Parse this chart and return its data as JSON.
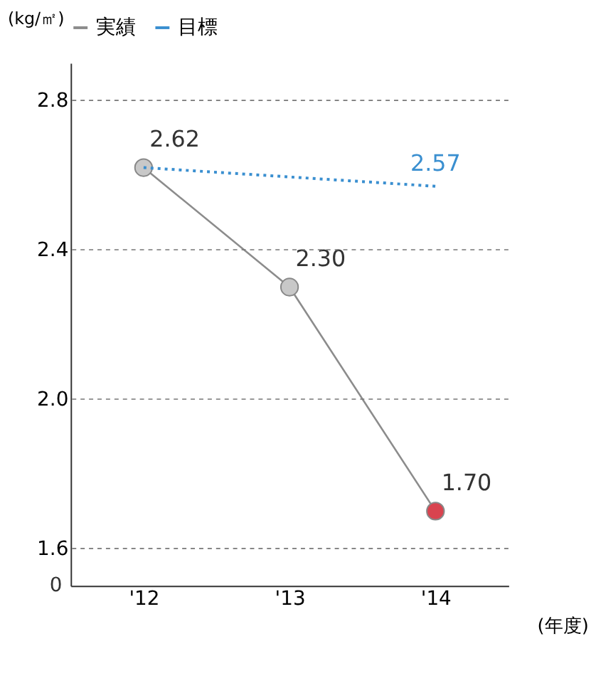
{
  "chart_data": {
    "type": "line",
    "ylabel": "(kg/㎡)",
    "xlabel": "(年度)",
    "categories": [
      "'12",
      "'13",
      "'14"
    ],
    "series": [
      {
        "name": "実績",
        "color": "#8c8c8c",
        "colors": [
          "#c8c8c8",
          "#c8c8c8",
          "#d9434f"
        ],
        "marker": "circle",
        "line_style": "solid",
        "values": [
          2.62,
          2.3,
          1.7
        ],
        "value_labels": [
          "2.62",
          "2.30",
          "1.70"
        ]
      },
      {
        "name": "目標",
        "color": "#3a8fd0",
        "marker": "none",
        "line_style": "dotted",
        "values": [
          2.62,
          null,
          2.57
        ],
        "value_labels": [
          null,
          null,
          "2.57"
        ]
      }
    ],
    "ylim": [
      1.5,
      2.9
    ],
    "yticks": [
      {
        "value": 1.6,
        "label": "1.6"
      },
      {
        "value": 2.0,
        "label": "2.0"
      },
      {
        "value": 2.4,
        "label": "2.4"
      },
      {
        "value": 2.8,
        "label": "2.8"
      }
    ],
    "annotations": [
      "0"
    ],
    "grid": "y",
    "legend": "top"
  }
}
